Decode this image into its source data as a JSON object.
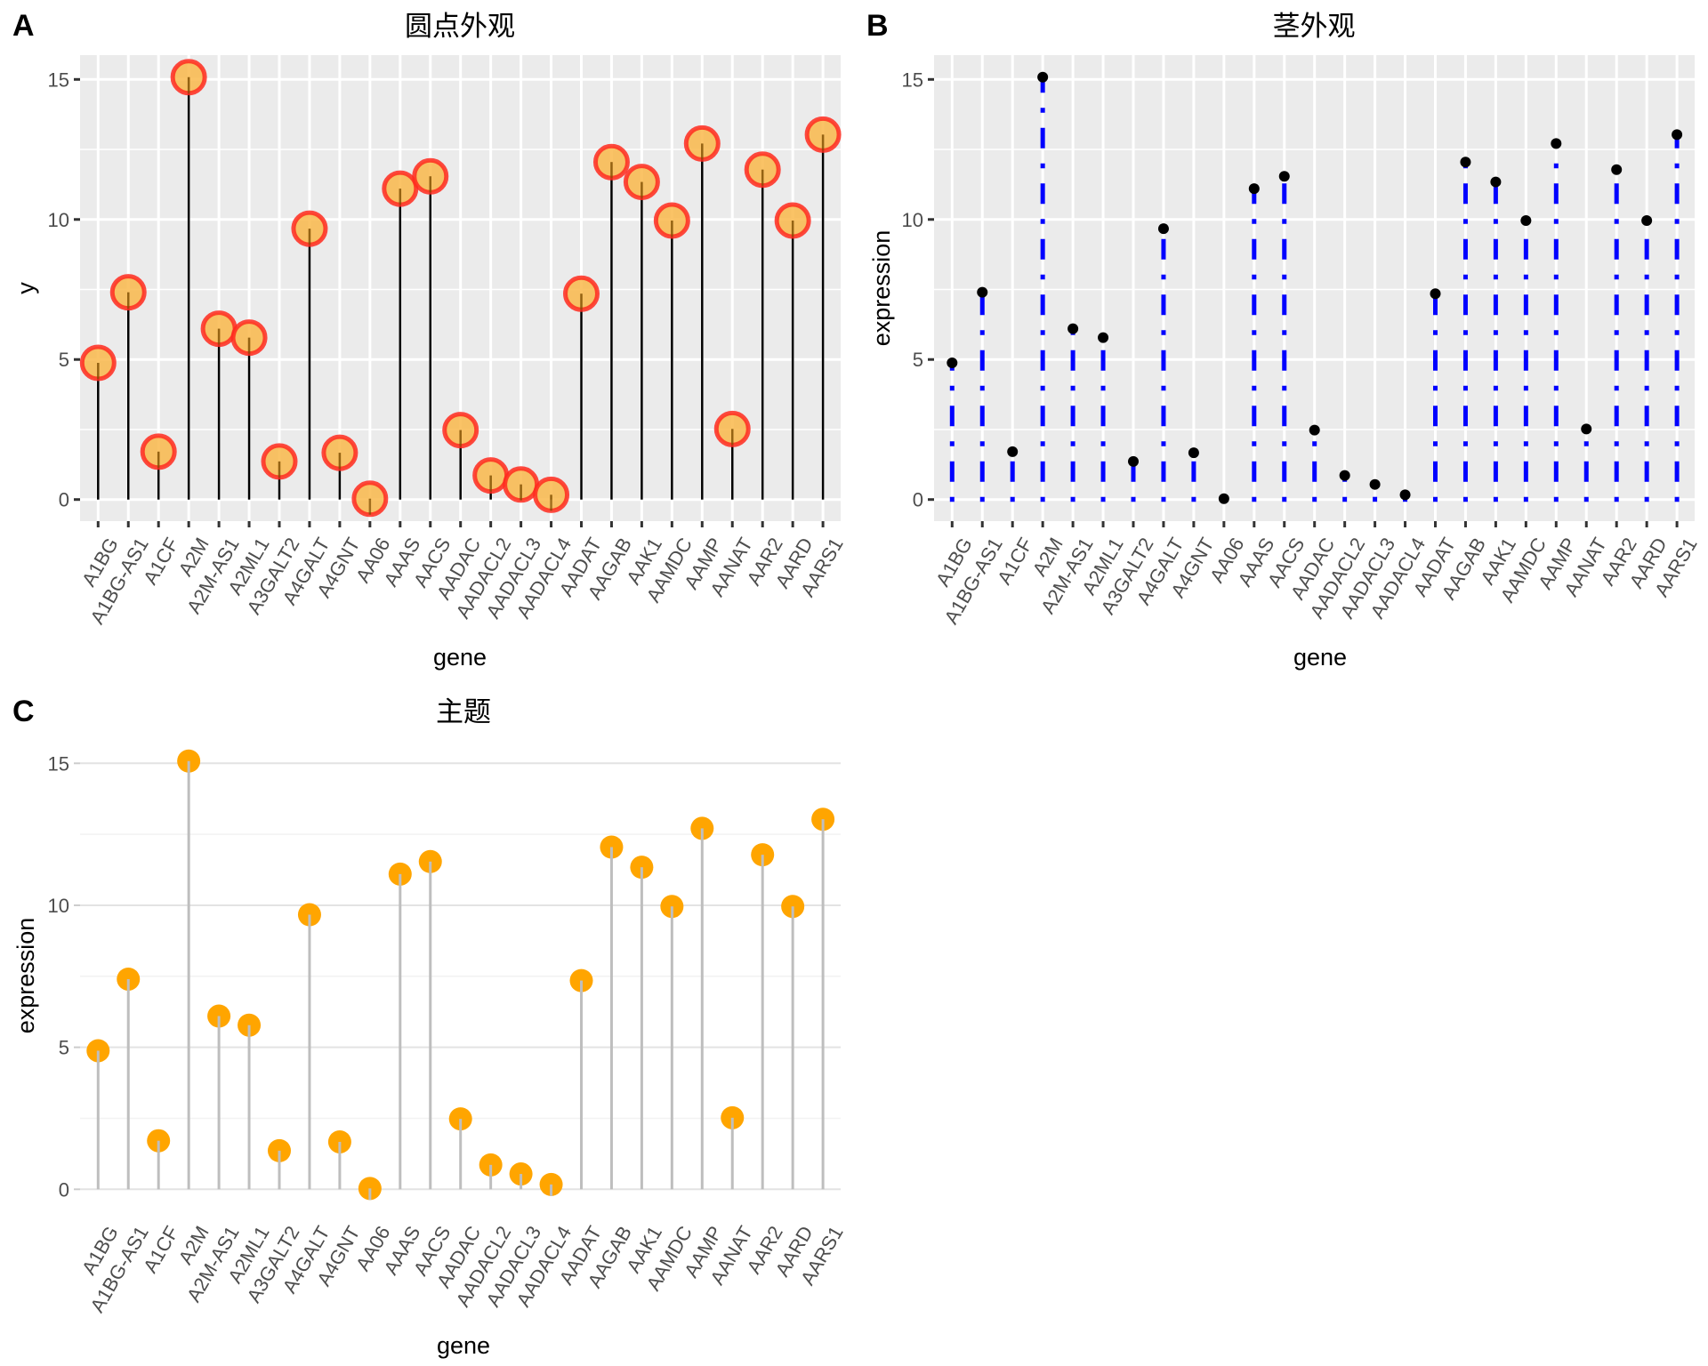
{
  "chart_data": [
    {
      "panel": "A",
      "type": "lollipop",
      "title": "圆点外观",
      "xlabel": "gene",
      "ylabel": "y",
      "ylim": [
        -0.6,
        15.8
      ],
      "yticks": [
        0,
        5,
        10,
        15
      ],
      "ytick_labels": [
        "0",
        "5",
        "10",
        "15"
      ],
      "grid": true,
      "theme": "grey",
      "categories": [
        "A1BG",
        "A1BG-AS1",
        "A1CF",
        "A2M",
        "A2M-AS1",
        "A2ML1",
        "A3GALT2",
        "A4GALT",
        "A4GNT",
        "AA06",
        "AAAS",
        "AACS",
        "AADAC",
        "AADACL2",
        "AADACL3",
        "AADACL4",
        "AADAT",
        "AAGAB",
        "AAK1",
        "AAMDC",
        "AAMP",
        "AANAT",
        "AAR2",
        "AARD",
        "AARS1"
      ],
      "values": [
        4.88,
        7.4,
        1.71,
        15.08,
        6.1,
        5.78,
        1.36,
        9.67,
        1.67,
        0.03,
        11.1,
        11.54,
        2.48,
        0.86,
        0.54,
        0.17,
        7.35,
        12.05,
        11.34,
        9.96,
        12.71,
        2.52,
        11.78,
        9.96,
        13.03
      ],
      "style": {
        "point_fill": "#F9B84B",
        "point_stroke": "#FF2A1F",
        "segment_color": "#000000"
      }
    },
    {
      "panel": "B",
      "type": "lollipop",
      "title": "茎外观",
      "xlabel": "gene",
      "ylabel": "expression",
      "ylim": [
        -0.6,
        15.8
      ],
      "yticks": [
        0,
        5,
        10,
        15
      ],
      "ytick_labels": [
        "0",
        "5",
        "10",
        "15"
      ],
      "grid": true,
      "theme": "grey",
      "categories": [
        "A1BG",
        "A1BG-AS1",
        "A1CF",
        "A2M",
        "A2M-AS1",
        "A2ML1",
        "A3GALT2",
        "A4GALT",
        "A4GNT",
        "AA06",
        "AAAS",
        "AACS",
        "AADAC",
        "AADACL2",
        "AADACL3",
        "AADACL4",
        "AADAT",
        "AAGAB",
        "AAK1",
        "AAMDC",
        "AAMP",
        "AANAT",
        "AAR2",
        "AARD",
        "AARS1"
      ],
      "values": [
        4.88,
        7.4,
        1.71,
        15.08,
        6.1,
        5.78,
        1.36,
        9.67,
        1.67,
        0.03,
        11.1,
        11.54,
        2.48,
        0.86,
        0.54,
        0.17,
        7.35,
        12.05,
        11.34,
        9.96,
        12.71,
        2.52,
        11.78,
        9.96,
        13.03
      ],
      "style": {
        "point_fill": "#000000",
        "segment_color": "#0000FF",
        "segment_linetype": "dotdash"
      }
    },
    {
      "panel": "C",
      "type": "lollipop",
      "title": "主题",
      "xlabel": "gene",
      "ylabel": "expression",
      "ylim": [
        -0.6,
        15.8
      ],
      "yticks": [
        0,
        5,
        10,
        15
      ],
      "ytick_labels": [
        "0",
        "5",
        "10",
        "15"
      ],
      "grid": true,
      "theme": "light",
      "categories": [
        "A1BG",
        "A1BG-AS1",
        "A1CF",
        "A2M",
        "A2M-AS1",
        "A2ML1",
        "A3GALT2",
        "A4GALT",
        "A4GNT",
        "AA06",
        "AAAS",
        "AACS",
        "AADAC",
        "AADACL2",
        "AADACL3",
        "AADACL4",
        "AADAT",
        "AAGAB",
        "AAK1",
        "AAMDC",
        "AAMP",
        "AANAT",
        "AAR2",
        "AARD",
        "AARS1"
      ],
      "values": [
        4.88,
        7.4,
        1.71,
        15.08,
        6.1,
        5.78,
        1.36,
        9.67,
        1.67,
        0.03,
        11.1,
        11.54,
        2.48,
        0.86,
        0.54,
        0.17,
        7.35,
        12.05,
        11.34,
        9.96,
        12.71,
        2.52,
        11.78,
        9.96,
        13.03
      ],
      "style": {
        "point_fill": "#FFA500",
        "segment_color": "#BEBEBE"
      }
    }
  ],
  "panel_tags": [
    "A",
    "B",
    "C"
  ]
}
